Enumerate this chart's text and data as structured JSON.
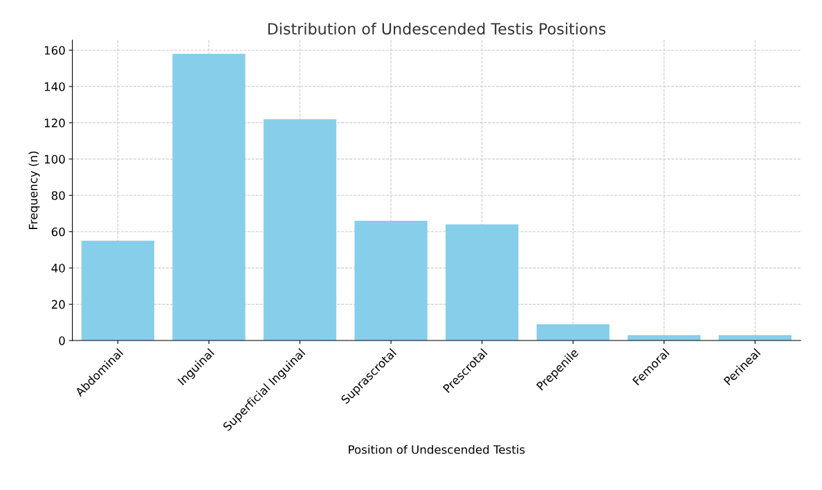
{
  "chart_data": {
    "type": "bar",
    "title": "Distribution of Undescended Testis Positions",
    "xlabel": "Position of Undescended Testis",
    "ylabel": "Frequency (n)",
    "categories": [
      "Abdominal",
      "Inguinal",
      "Superficial Inguinal",
      "Suprascrotal",
      "Prescrotal",
      "Prepenile",
      "Femoral",
      "Perineal"
    ],
    "values": [
      55,
      158,
      122,
      66,
      64,
      9,
      3,
      3
    ],
    "color": "#87ceeb",
    "ylim": [
      0,
      165.5
    ],
    "yticks": [
      0,
      20,
      40,
      60,
      80,
      100,
      120,
      140,
      160
    ],
    "grid": true
  }
}
